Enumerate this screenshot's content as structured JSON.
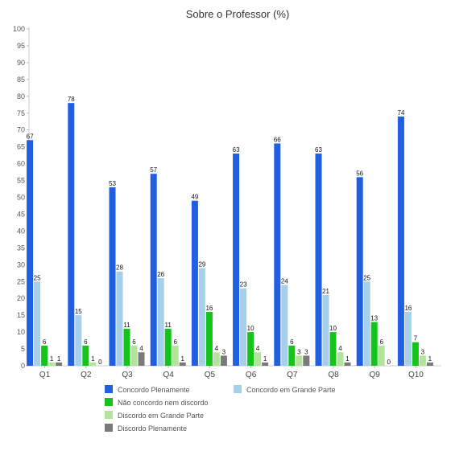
{
  "chart_data": {
    "type": "bar",
    "title": "Sobre o Professor (%)",
    "xlabel": "",
    "ylabel": "",
    "ylim": [
      0,
      100
    ],
    "yticks": [
      0,
      5,
      10,
      15,
      20,
      25,
      30,
      35,
      40,
      45,
      50,
      55,
      60,
      65,
      70,
      75,
      80,
      85,
      90,
      95,
      100
    ],
    "grid": false,
    "legend_position": "bottom",
    "categories": [
      "Q1",
      "Q2",
      "Q3",
      "Q4",
      "Q5",
      "Q6",
      "Q7",
      "Q8",
      "Q9",
      "Q10"
    ],
    "series": [
      {
        "name": "Concordo Plenamente",
        "color": "#1f5fe0",
        "values": [
          67,
          78,
          53,
          57,
          49,
          63,
          66,
          63,
          56,
          74
        ]
      },
      {
        "name": "Concordo em Grande Parte",
        "color": "#a6cfe9",
        "values": [
          25,
          15,
          28,
          26,
          29,
          23,
          24,
          21,
          25,
          16
        ]
      },
      {
        "name": "Não concordo nem discordo",
        "color": "#15c41a",
        "values": [
          6,
          6,
          11,
          11,
          16,
          10,
          6,
          10,
          13,
          7
        ]
      },
      {
        "name": "Discordo em Grande Parte",
        "color": "#b4e49a",
        "values": [
          1,
          1,
          6,
          6,
          4,
          4,
          3,
          4,
          6,
          3
        ]
      },
      {
        "name": "Discordo Plenamente",
        "color": "#7a7a7a",
        "values": [
          1,
          0,
          4,
          1,
          3,
          1,
          3,
          1,
          0,
          1
        ]
      }
    ]
  }
}
